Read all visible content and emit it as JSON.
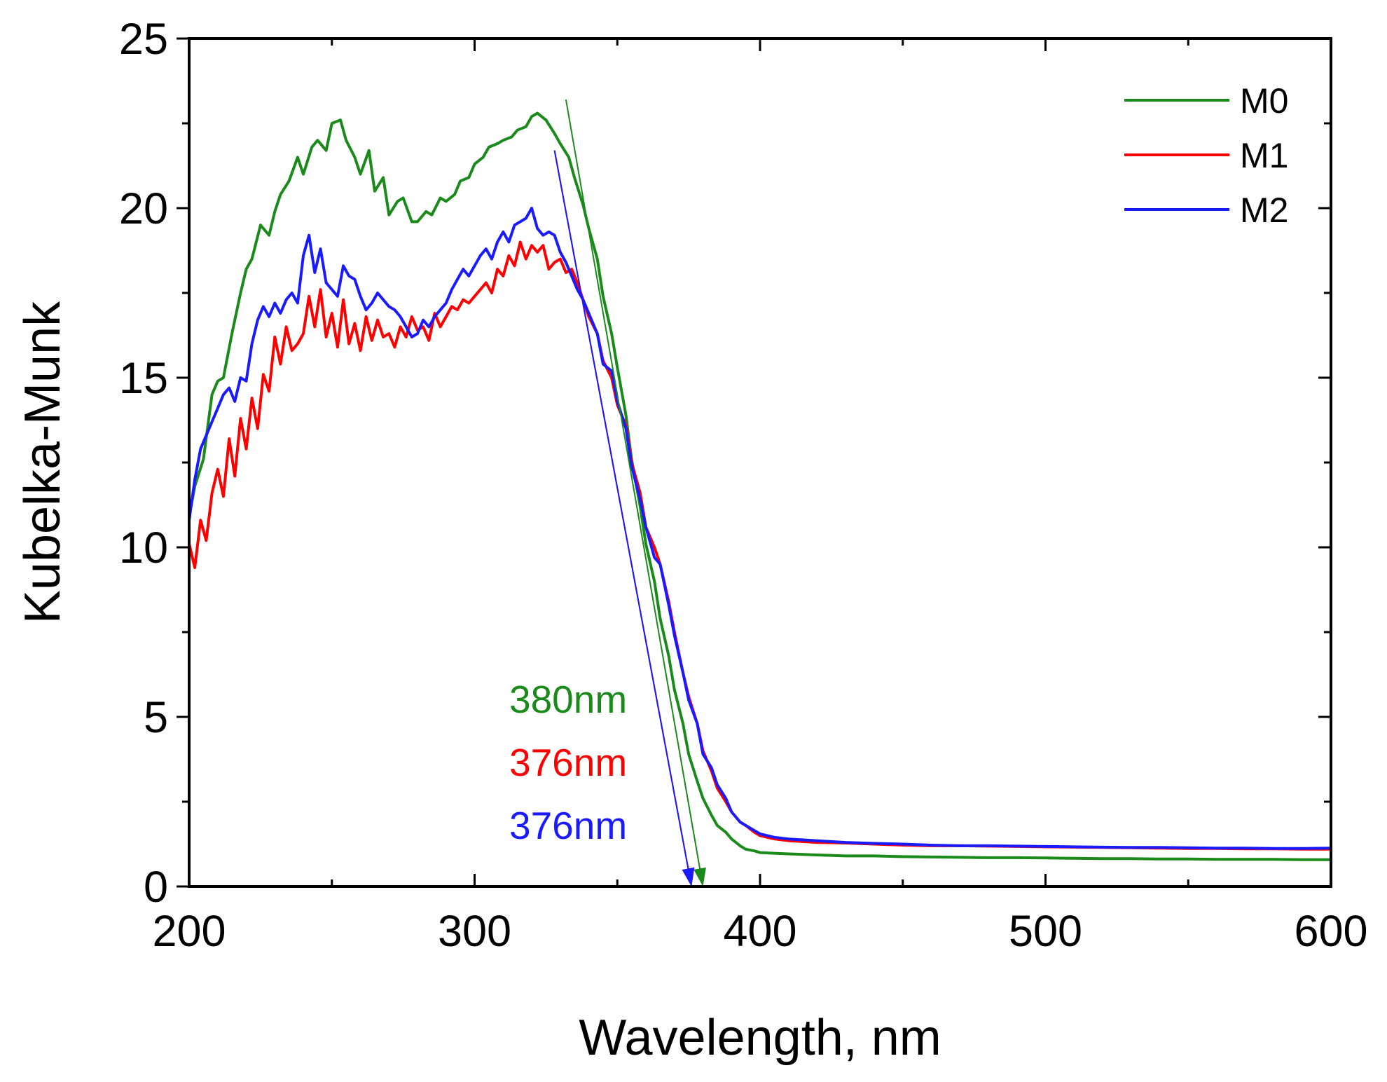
{
  "chart_data": {
    "type": "line",
    "xlabel": "Wavelength, nm",
    "ylabel": "Kubelka-Munk",
    "xlim": [
      200,
      600
    ],
    "ylim": [
      0,
      25
    ],
    "xticks": [
      "200",
      "300",
      "400",
      "500",
      "600"
    ],
    "yticks": [
      "0",
      "5",
      "10",
      "15",
      "20",
      "25"
    ],
    "grid": false,
    "legend_position": "top-right",
    "series": [
      {
        "name": "M0",
        "color": "#1a8a1a",
        "x": [
          200,
          202,
          205,
          208,
          210,
          212,
          215,
          218,
          220,
          222,
          225,
          228,
          230,
          232,
          235,
          238,
          240,
          243,
          245,
          248,
          250,
          253,
          255,
          258,
          260,
          263,
          265,
          268,
          270,
          273,
          275,
          278,
          280,
          283,
          285,
          288,
          290,
          293,
          295,
          298,
          300,
          303,
          305,
          308,
          310,
          313,
          315,
          318,
          320,
          322,
          325,
          328,
          330,
          333,
          335,
          338,
          340,
          343,
          345,
          348,
          350,
          353,
          355,
          358,
          360,
          363,
          365,
          368,
          370,
          373,
          375,
          378,
          380,
          383,
          385,
          388,
          390,
          393,
          395,
          398,
          400,
          405,
          410,
          420,
          430,
          440,
          450,
          460,
          470,
          480,
          490,
          500,
          510,
          520,
          530,
          540,
          550,
          560,
          570,
          580,
          590,
          600
        ],
        "y": [
          10.9,
          11.8,
          12.6,
          14.5,
          14.9,
          15.0,
          16.3,
          17.5,
          18.2,
          18.5,
          19.5,
          19.2,
          19.9,
          20.4,
          20.8,
          21.5,
          21.0,
          21.8,
          22.0,
          21.7,
          22.5,
          22.6,
          22.0,
          21.5,
          21.0,
          21.7,
          20.5,
          20.9,
          19.8,
          20.2,
          20.3,
          19.6,
          19.6,
          19.9,
          19.8,
          20.3,
          20.2,
          20.4,
          20.8,
          20.9,
          21.3,
          21.5,
          21.8,
          21.9,
          22.0,
          22.1,
          22.3,
          22.4,
          22.7,
          22.8,
          22.6,
          22.2,
          21.9,
          21.5,
          20.9,
          20.1,
          19.4,
          18.5,
          17.4,
          16.3,
          15.3,
          13.9,
          12.6,
          11.2,
          10.1,
          9.0,
          7.9,
          6.8,
          5.8,
          4.8,
          3.9,
          3.1,
          2.6,
          2.1,
          1.8,
          1.6,
          1.4,
          1.2,
          1.1,
          1.05,
          1.0,
          0.98,
          0.96,
          0.93,
          0.9,
          0.9,
          0.88,
          0.87,
          0.86,
          0.85,
          0.85,
          0.84,
          0.83,
          0.82,
          0.82,
          0.81,
          0.81,
          0.8,
          0.8,
          0.8,
          0.79,
          0.79
        ]
      },
      {
        "name": "M1",
        "color": "#ff0000",
        "x": [
          200,
          202,
          204,
          206,
          208,
          210,
          212,
          214,
          216,
          218,
          220,
          222,
          224,
          226,
          228,
          230,
          232,
          234,
          236,
          238,
          240,
          242,
          244,
          246,
          248,
          250,
          252,
          254,
          256,
          258,
          260,
          262,
          264,
          266,
          268,
          270,
          272,
          274,
          276,
          278,
          280,
          282,
          284,
          286,
          288,
          290,
          292,
          294,
          296,
          298,
          300,
          302,
          304,
          306,
          308,
          310,
          312,
          314,
          316,
          318,
          320,
          322,
          324,
          326,
          328,
          330,
          332,
          334,
          336,
          338,
          340,
          343,
          345,
          348,
          350,
          353,
          355,
          358,
          360,
          363,
          365,
          368,
          370,
          373,
          375,
          378,
          380,
          383,
          385,
          388,
          390,
          393,
          395,
          398,
          400,
          405,
          410,
          420,
          430,
          440,
          450,
          460,
          470,
          480,
          490,
          500,
          510,
          520,
          530,
          540,
          550,
          560,
          570,
          580,
          590,
          600
        ],
        "y": [
          10.1,
          9.4,
          10.8,
          10.2,
          11.6,
          12.3,
          11.5,
          13.2,
          12.1,
          13.8,
          12.9,
          14.4,
          13.5,
          15.1,
          14.6,
          16.2,
          15.4,
          16.5,
          15.8,
          16.0,
          16.3,
          17.4,
          16.5,
          17.6,
          16.2,
          16.9,
          15.9,
          17.3,
          16.0,
          16.6,
          15.8,
          16.8,
          16.1,
          16.7,
          16.2,
          16.3,
          15.9,
          16.5,
          16.2,
          16.8,
          16.4,
          16.5,
          16.1,
          16.9,
          16.5,
          16.8,
          17.1,
          17.0,
          17.3,
          17.2,
          17.4,
          17.6,
          17.8,
          17.5,
          18.2,
          18.0,
          18.6,
          18.3,
          19.0,
          18.5,
          18.9,
          18.7,
          18.9,
          18.2,
          18.4,
          18.5,
          18.1,
          18.2,
          17.8,
          17.3,
          16.8,
          16.3,
          15.5,
          15.0,
          14.2,
          13.6,
          12.5,
          11.6,
          10.6,
          10.0,
          9.5,
          8.4,
          7.5,
          6.3,
          5.6,
          4.8,
          4.0,
          3.4,
          2.9,
          2.5,
          2.2,
          1.9,
          1.8,
          1.6,
          1.5,
          1.4,
          1.35,
          1.3,
          1.28,
          1.25,
          1.22,
          1.2,
          1.2,
          1.19,
          1.18,
          1.17,
          1.16,
          1.15,
          1.14,
          1.13,
          1.12,
          1.12,
          1.11,
          1.11,
          1.1,
          1.1
        ]
      },
      {
        "name": "M2",
        "color": "#1a1aff",
        "x": [
          200,
          202,
          204,
          206,
          208,
          210,
          212,
          214,
          216,
          218,
          220,
          222,
          224,
          226,
          228,
          230,
          232,
          234,
          236,
          238,
          240,
          242,
          244,
          246,
          248,
          250,
          252,
          254,
          256,
          258,
          260,
          262,
          264,
          266,
          268,
          270,
          272,
          274,
          276,
          278,
          280,
          282,
          284,
          286,
          288,
          290,
          292,
          294,
          296,
          298,
          300,
          302,
          304,
          306,
          308,
          310,
          312,
          314,
          316,
          318,
          320,
          322,
          324,
          326,
          328,
          330,
          332,
          334,
          336,
          338,
          340,
          343,
          345,
          348,
          350,
          353,
          355,
          358,
          360,
          363,
          365,
          368,
          370,
          373,
          375,
          378,
          380,
          383,
          385,
          388,
          390,
          393,
          395,
          398,
          400,
          405,
          410,
          420,
          430,
          440,
          450,
          460,
          470,
          480,
          490,
          500,
          510,
          520,
          530,
          540,
          550,
          560,
          570,
          580,
          590,
          600
        ],
        "y": [
          10.8,
          12.0,
          12.9,
          13.3,
          13.7,
          14.1,
          14.5,
          14.7,
          14.3,
          15.0,
          14.9,
          16.0,
          16.7,
          17.1,
          16.8,
          17.2,
          16.9,
          17.3,
          17.5,
          17.2,
          18.6,
          19.2,
          18.1,
          18.8,
          17.8,
          17.6,
          17.4,
          18.3,
          18.0,
          17.9,
          17.4,
          17.0,
          17.2,
          17.5,
          17.3,
          17.1,
          17.0,
          16.8,
          16.5,
          16.2,
          16.3,
          16.7,
          16.5,
          16.8,
          17.0,
          17.2,
          17.6,
          17.9,
          18.2,
          18.0,
          18.3,
          18.6,
          18.8,
          18.5,
          19.0,
          19.3,
          19.0,
          19.5,
          19.6,
          19.7,
          20.0,
          19.4,
          19.2,
          19.3,
          19.2,
          18.7,
          18.4,
          18.0,
          17.6,
          17.3,
          16.9,
          16.3,
          15.4,
          15.2,
          14.3,
          13.5,
          12.4,
          11.4,
          10.6,
          9.7,
          9.5,
          8.3,
          7.4,
          6.3,
          5.5,
          4.8,
          3.9,
          3.5,
          3.0,
          2.6,
          2.2,
          1.9,
          1.8,
          1.65,
          1.55,
          1.45,
          1.4,
          1.35,
          1.3,
          1.27,
          1.25,
          1.22,
          1.2,
          1.2,
          1.19,
          1.18,
          1.17,
          1.16,
          1.15,
          1.15,
          1.14,
          1.13,
          1.13,
          1.12,
          1.12,
          1.13
        ]
      }
    ],
    "tangent_lines": [
      {
        "series": "M0",
        "color": "#1a8a1a",
        "x": [
          332,
          380
        ],
        "y": [
          23.2,
          0
        ]
      },
      {
        "series": "M1",
        "color": "#ff0000",
        "x": [
          328,
          376
        ],
        "y": [
          21.7,
          0
        ]
      },
      {
        "series": "M2",
        "color": "#1a1aff",
        "x": [
          328,
          376
        ],
        "y": [
          21.7,
          0
        ]
      }
    ],
    "annotations": [
      {
        "text": "380nm",
        "color": "#1a8a1a"
      },
      {
        "text": "376nm",
        "color": "#ff0000"
      },
      {
        "text": "376nm",
        "color": "#1a1aff"
      }
    ]
  }
}
